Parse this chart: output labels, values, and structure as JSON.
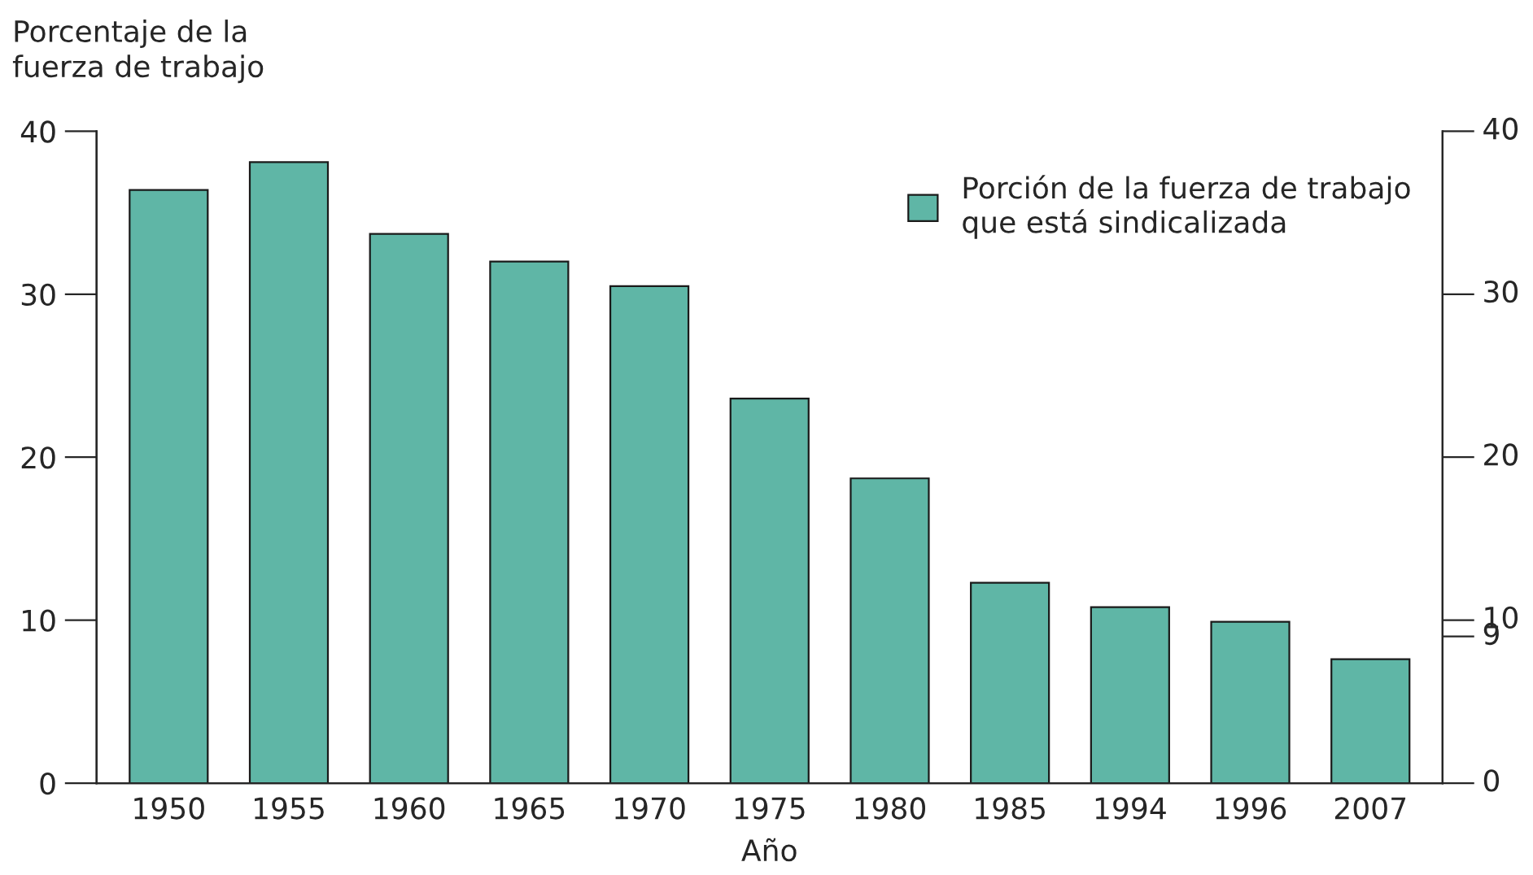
{
  "chart_data": {
    "type": "bar",
    "categories": [
      "1950",
      "1955",
      "1960",
      "1965",
      "1970",
      "1975",
      "1980",
      "1985",
      "1994",
      "1996",
      "2007"
    ],
    "series": [
      {
        "name": "Porción de la fuerza de trabajo que está sindicalizada",
        "color": "#5fb6a6",
        "values": [
          36.4,
          38.1,
          33.7,
          32.0,
          30.5,
          23.6,
          18.7,
          12.3,
          10.8,
          9.9,
          7.6
        ]
      }
    ],
    "xlabel": "Año",
    "ylabel": "Porcentaje de la fuerza de trabajo",
    "ylim": [
      0,
      40
    ],
    "yticks": [
      0,
      10,
      20,
      30,
      40
    ],
    "y2lim": [
      0,
      40
    ],
    "y2ticks": [
      0,
      9,
      10,
      20,
      30,
      40
    ],
    "grid": false,
    "legend": "top right"
  }
}
